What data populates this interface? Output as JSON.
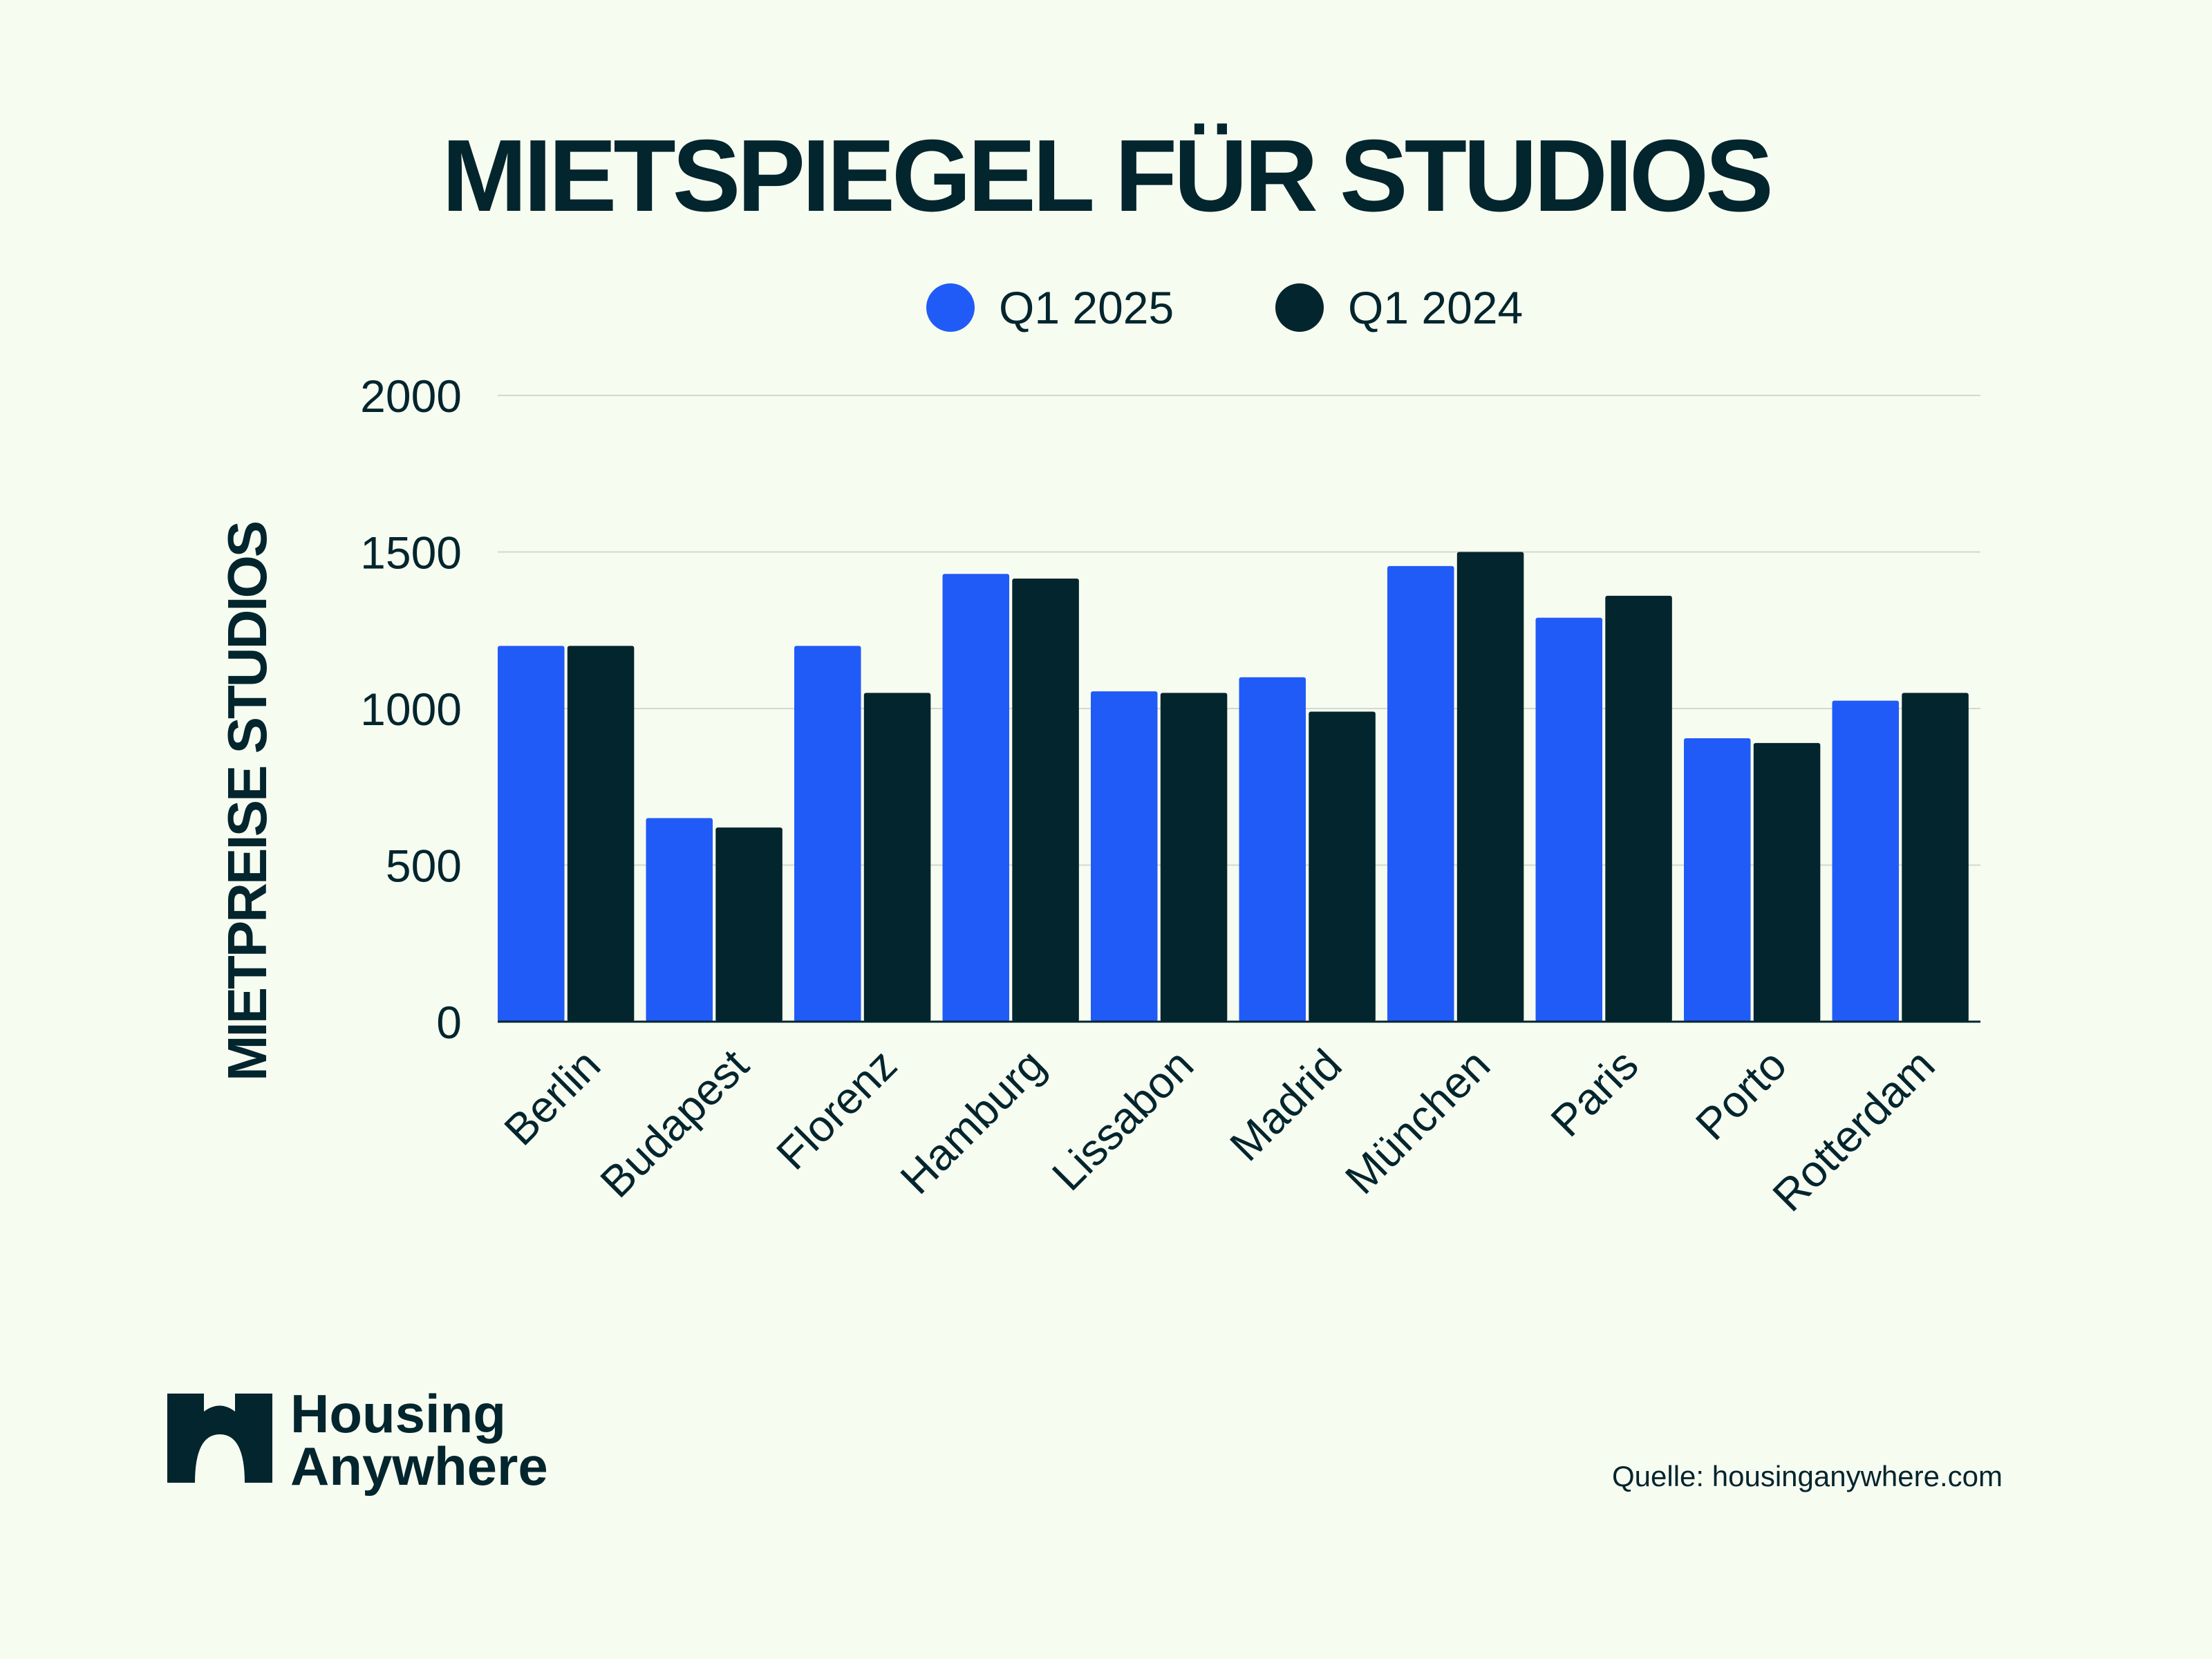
{
  "colors": {
    "background": "#f7fcf1",
    "ink": "#03252d",
    "q1_2025": "#215bf7",
    "q1_2024": "#03252d",
    "grid": "#d4d9d0"
  },
  "chart_data": {
    "type": "bar",
    "title": "MIETSPIEGEL FÜR STUDIOS",
    "xlabel": "",
    "ylabel": "MIETPREISE STUDIOS",
    "ylim": [
      0,
      2000
    ],
    "yticks": [
      0,
      500,
      1000,
      1500,
      2000
    ],
    "grid": true,
    "legend_position": "top-center",
    "categories": [
      "Berlin",
      "Budapest",
      "Florenz",
      "Hamburg",
      "Lissabon",
      "Madrid",
      "München",
      "Paris",
      "Porto",
      "Rotterdam"
    ],
    "series": [
      {
        "name": "Q1 2025",
        "values": [
          1200,
          650,
          1200,
          1430,
          1055,
          1100,
          1455,
          1290,
          905,
          1025
        ]
      },
      {
        "name": "Q1 2024",
        "values": [
          1200,
          620,
          1050,
          1415,
          1050,
          990,
          1500,
          1360,
          890,
          1050
        ]
      }
    ]
  },
  "branding": {
    "logo_name": "Housing Anywhere",
    "logo_line1": "Housing",
    "logo_line2": "Anywhere",
    "logo_icon": "house-arch-icon",
    "source": "Quelle: housinganywhere.com"
  }
}
